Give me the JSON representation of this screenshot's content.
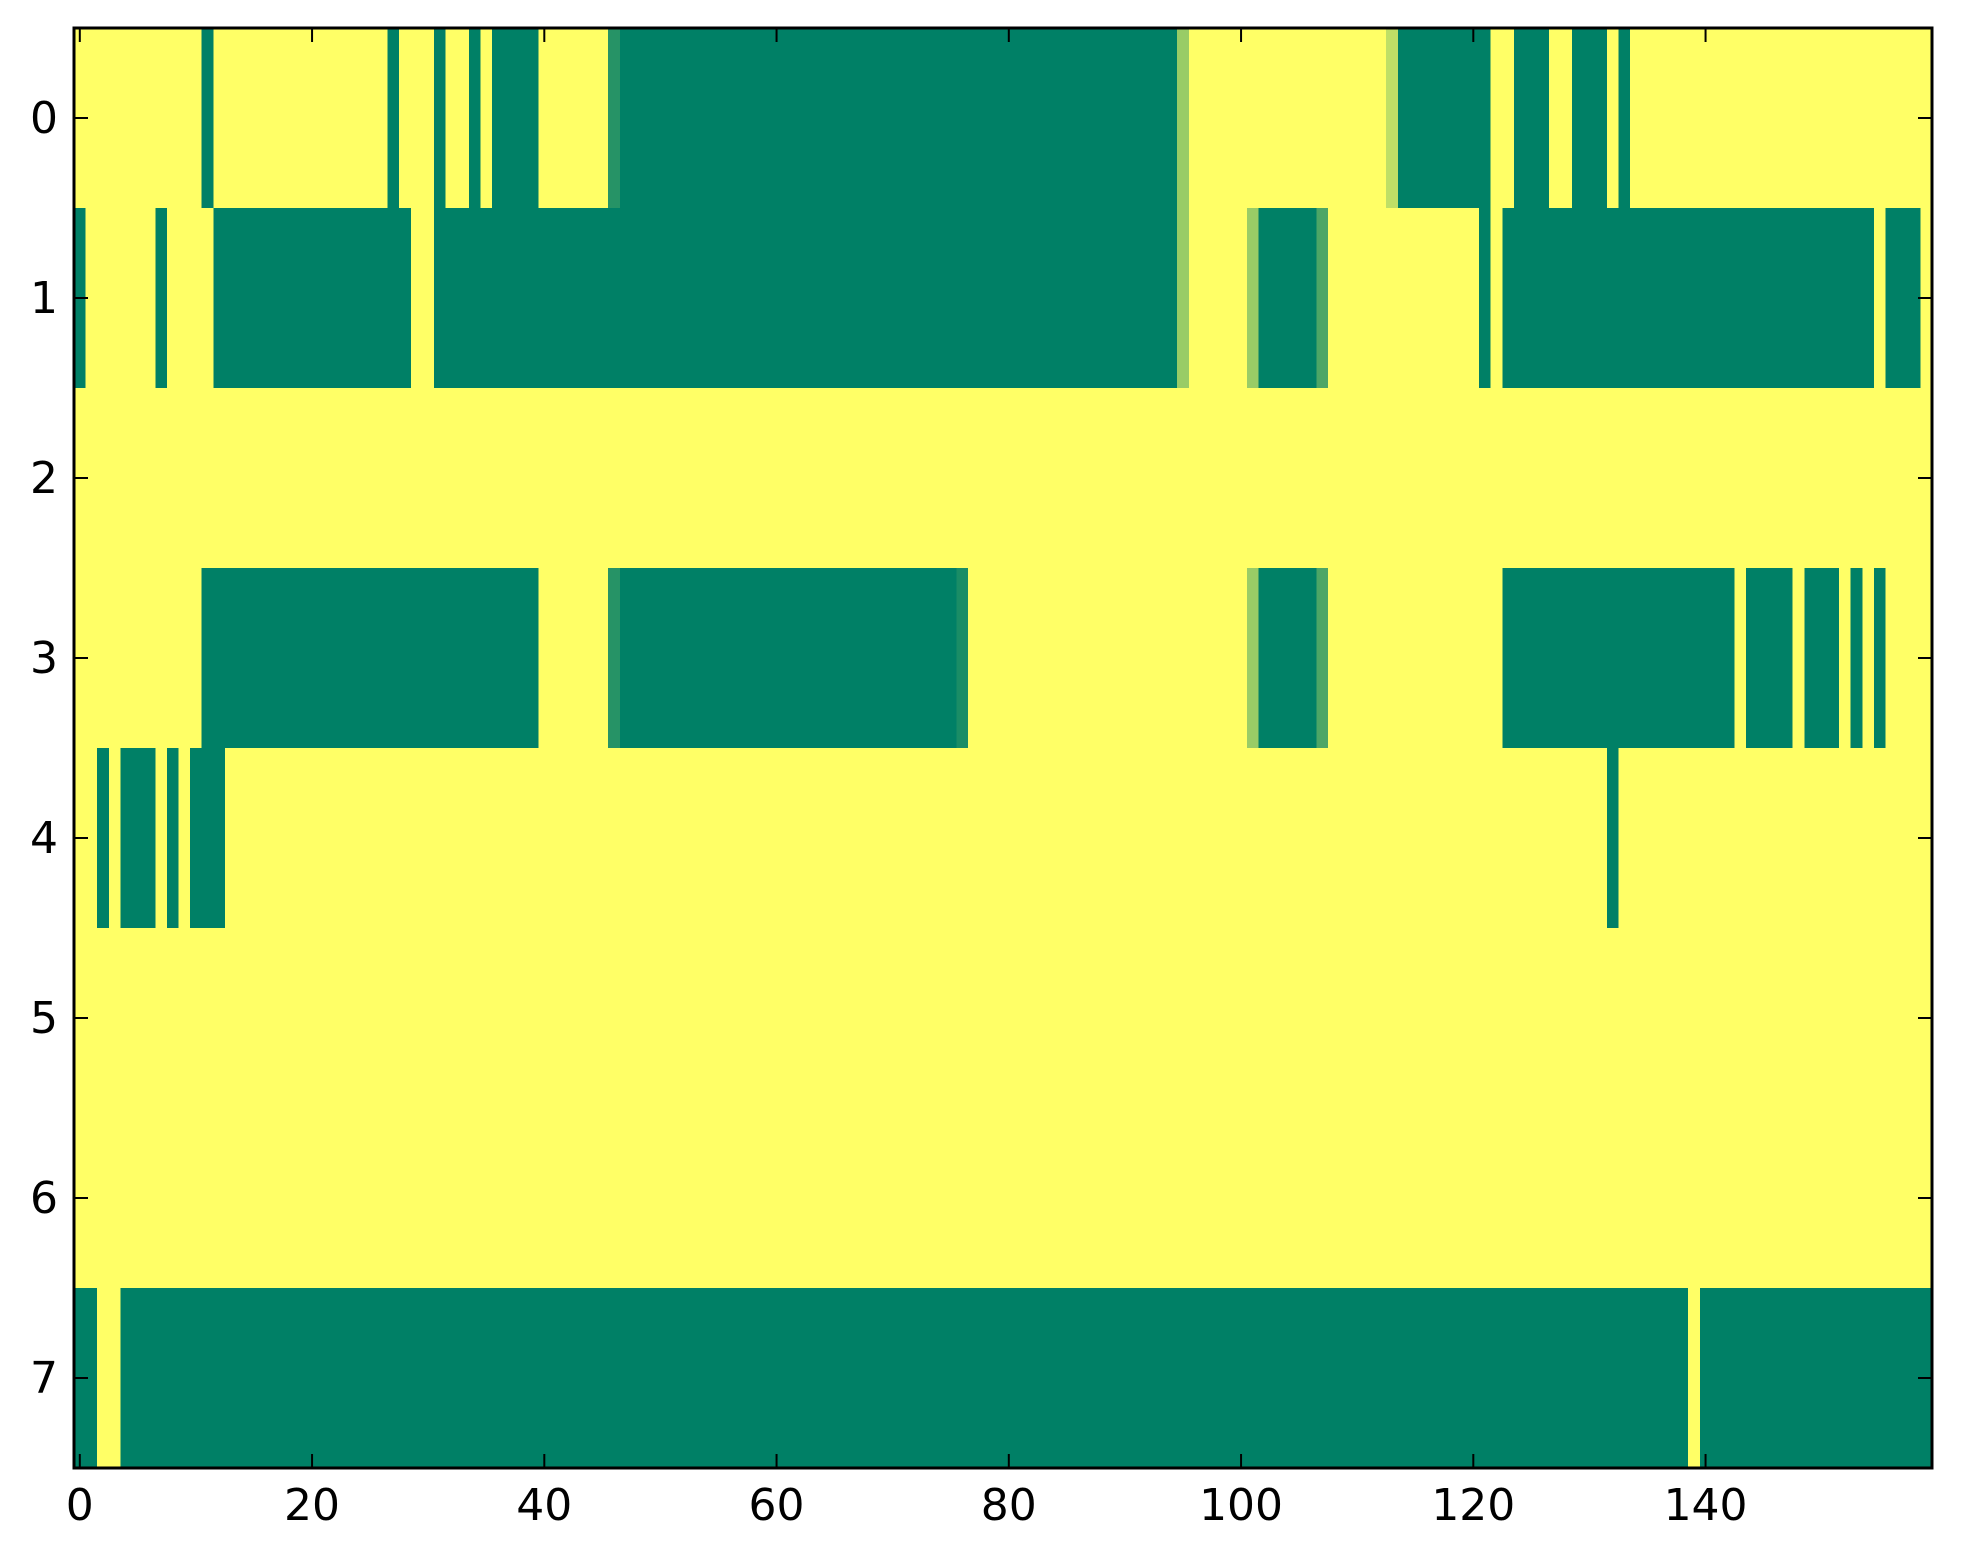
{
  "chart_data": {
    "type": "heatmap",
    "title": "",
    "xlabel": "",
    "ylabel": "",
    "n_columns": 160,
    "n_rows": 8,
    "xlim": [
      -0.5,
      159.5
    ],
    "ylim": [
      7.5,
      -0.5
    ],
    "x_ticks": [
      0,
      20,
      40,
      60,
      80,
      100,
      120,
      140
    ],
    "x_tick_labels": [
      "0",
      "20",
      "40",
      "60",
      "80",
      "100",
      "120",
      "140"
    ],
    "y_ticks": [
      0,
      1,
      2,
      3,
      4,
      5,
      6,
      7
    ],
    "y_tick_labels": [
      "0",
      "1",
      "2",
      "3",
      "4",
      "5",
      "6",
      "7"
    ],
    "colormap": "summer",
    "value_range": [
      0,
      1
    ],
    "background_value": 1,
    "colors": {
      "low": "#008066",
      "high": "#ffff66",
      "mid_dark": "#1a8c66",
      "mid_light": "#80c066"
    },
    "grid": false,
    "legend": "none",
    "rows": [
      {
        "row": 0,
        "runs": [
          {
            "start": 11,
            "end": 11,
            "value": 0
          },
          {
            "start": 27,
            "end": 27,
            "value": 0
          },
          {
            "start": 31,
            "end": 31,
            "value": 0
          },
          {
            "start": 34,
            "end": 34,
            "value": 0
          },
          {
            "start": 36,
            "end": 39,
            "value": 0
          },
          {
            "start": 46,
            "end": 46,
            "value": 0.15
          },
          {
            "start": 47,
            "end": 94,
            "value": 0
          },
          {
            "start": 95,
            "end": 95,
            "value": 0.6
          },
          {
            "start": 113,
            "end": 113,
            "value": 0.75
          },
          {
            "start": 114,
            "end": 121,
            "value": 0
          },
          {
            "start": 124,
            "end": 126,
            "value": 0
          },
          {
            "start": 129,
            "end": 131,
            "value": 0
          },
          {
            "start": 133,
            "end": 133,
            "value": 0
          }
        ]
      },
      {
        "row": 1,
        "runs": [
          {
            "start": -1,
            "end": 0,
            "value": 0
          },
          {
            "start": 7,
            "end": 7,
            "value": 0
          },
          {
            "start": 12,
            "end": 28,
            "value": 0
          },
          {
            "start": 31,
            "end": 94,
            "value": 0
          },
          {
            "start": 95,
            "end": 95,
            "value": 0.6
          },
          {
            "start": 101,
            "end": 101,
            "value": 0.6
          },
          {
            "start": 102,
            "end": 106,
            "value": 0
          },
          {
            "start": 107,
            "end": 107,
            "value": 0.3
          },
          {
            "start": 121,
            "end": 121,
            "value": 0
          },
          {
            "start": 123,
            "end": 154,
            "value": 0
          },
          {
            "start": 156,
            "end": 158,
            "value": 0
          }
        ]
      },
      {
        "row": 2,
        "runs": []
      },
      {
        "row": 3,
        "runs": [
          {
            "start": 11,
            "end": 39,
            "value": 0
          },
          {
            "start": 46,
            "end": 46,
            "value": 0.15
          },
          {
            "start": 47,
            "end": 75,
            "value": 0
          },
          {
            "start": 76,
            "end": 76,
            "value": 0.1
          },
          {
            "start": 101,
            "end": 101,
            "value": 0.6
          },
          {
            "start": 102,
            "end": 106,
            "value": 0
          },
          {
            "start": 107,
            "end": 107,
            "value": 0.3
          },
          {
            "start": 123,
            "end": 142,
            "value": 0
          },
          {
            "start": 144,
            "end": 147,
            "value": 0
          },
          {
            "start": 149,
            "end": 151,
            "value": 0
          },
          {
            "start": 153,
            "end": 153,
            "value": 0
          },
          {
            "start": 155,
            "end": 155,
            "value": 0
          }
        ]
      },
      {
        "row": 4,
        "runs": [
          {
            "start": 2,
            "end": 2,
            "value": 0
          },
          {
            "start": 4,
            "end": 6,
            "value": 0
          },
          {
            "start": 8,
            "end": 8,
            "value": 0
          },
          {
            "start": 10,
            "end": 12,
            "value": 0
          },
          {
            "start": 132,
            "end": 132,
            "value": 0
          }
        ]
      },
      {
        "row": 5,
        "runs": []
      },
      {
        "row": 6,
        "runs": []
      },
      {
        "row": 7,
        "runs": [
          {
            "start": -1,
            "end": 1,
            "value": 0
          },
          {
            "start": 4,
            "end": 138,
            "value": 0
          },
          {
            "start": 140,
            "end": 159,
            "value": 0
          }
        ]
      }
    ]
  }
}
